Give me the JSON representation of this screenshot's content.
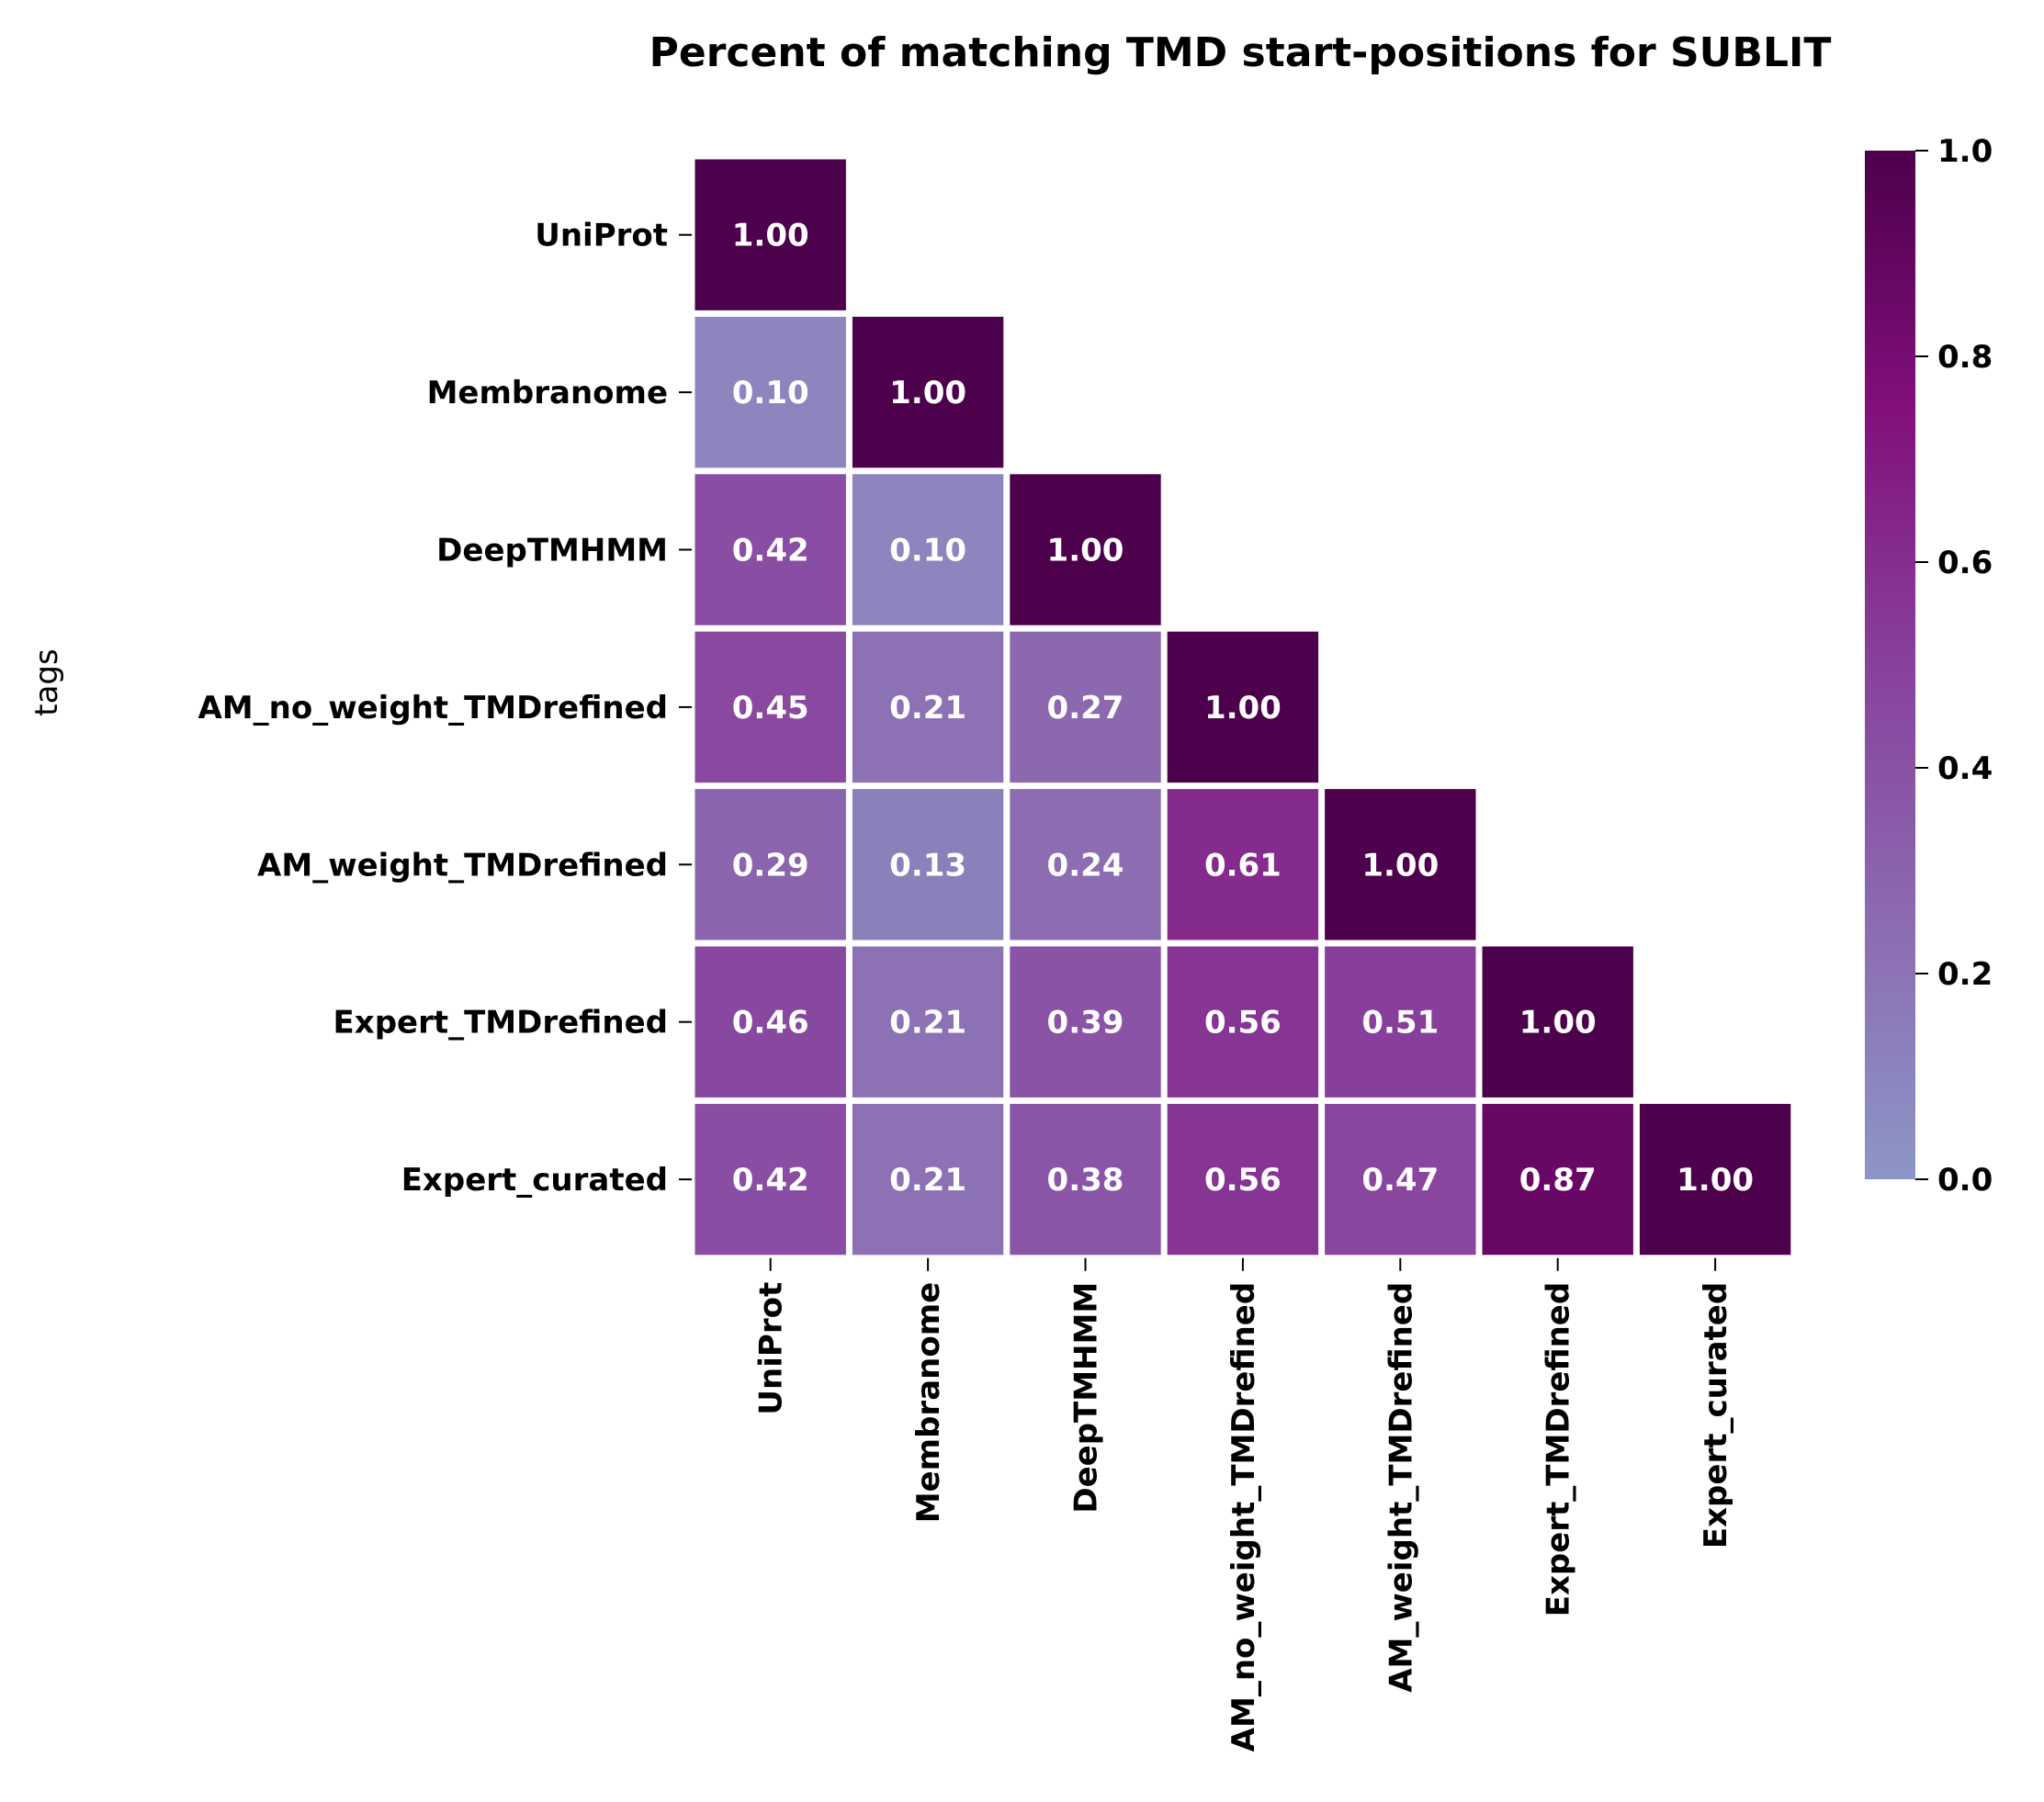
{
  "chart_data": {
    "type": "heatmap",
    "title": "Percent of matching TMD start-positions for SUBLIT",
    "ylabel": "tags",
    "xlabel": "",
    "categories": [
      "UniProt",
      "Membranome",
      "DeepTMHMM",
      "AM_no_weight_TMDrefined",
      "AM_weight_TMDrefined",
      "Expert_TMDrefined",
      "Expert_curated"
    ],
    "values": [
      [
        1.0
      ],
      [
        0.1,
        1.0
      ],
      [
        0.42,
        0.1,
        1.0
      ],
      [
        0.45,
        0.21,
        0.27,
        1.0
      ],
      [
        0.29,
        0.13,
        0.24,
        0.61,
        1.0
      ],
      [
        0.46,
        0.21,
        0.39,
        0.56,
        0.51,
        1.0
      ],
      [
        0.42,
        0.21,
        0.38,
        0.56,
        0.47,
        0.87,
        1.0
      ]
    ],
    "value_format": "0.00",
    "mask": "upper-triangle",
    "colorbar": {
      "range": [
        0.0,
        1.0
      ],
      "ticks": [
        "0.0",
        "0.2",
        "0.4",
        "0.6",
        "0.8",
        "1.0"
      ],
      "colormap": "BuPu"
    },
    "colors": {
      "low": "#8c96c6",
      "mid_low": "#8c6bb1",
      "mid": "#88419d",
      "mid_high": "#810f7c",
      "high": "#4d004b"
    }
  }
}
